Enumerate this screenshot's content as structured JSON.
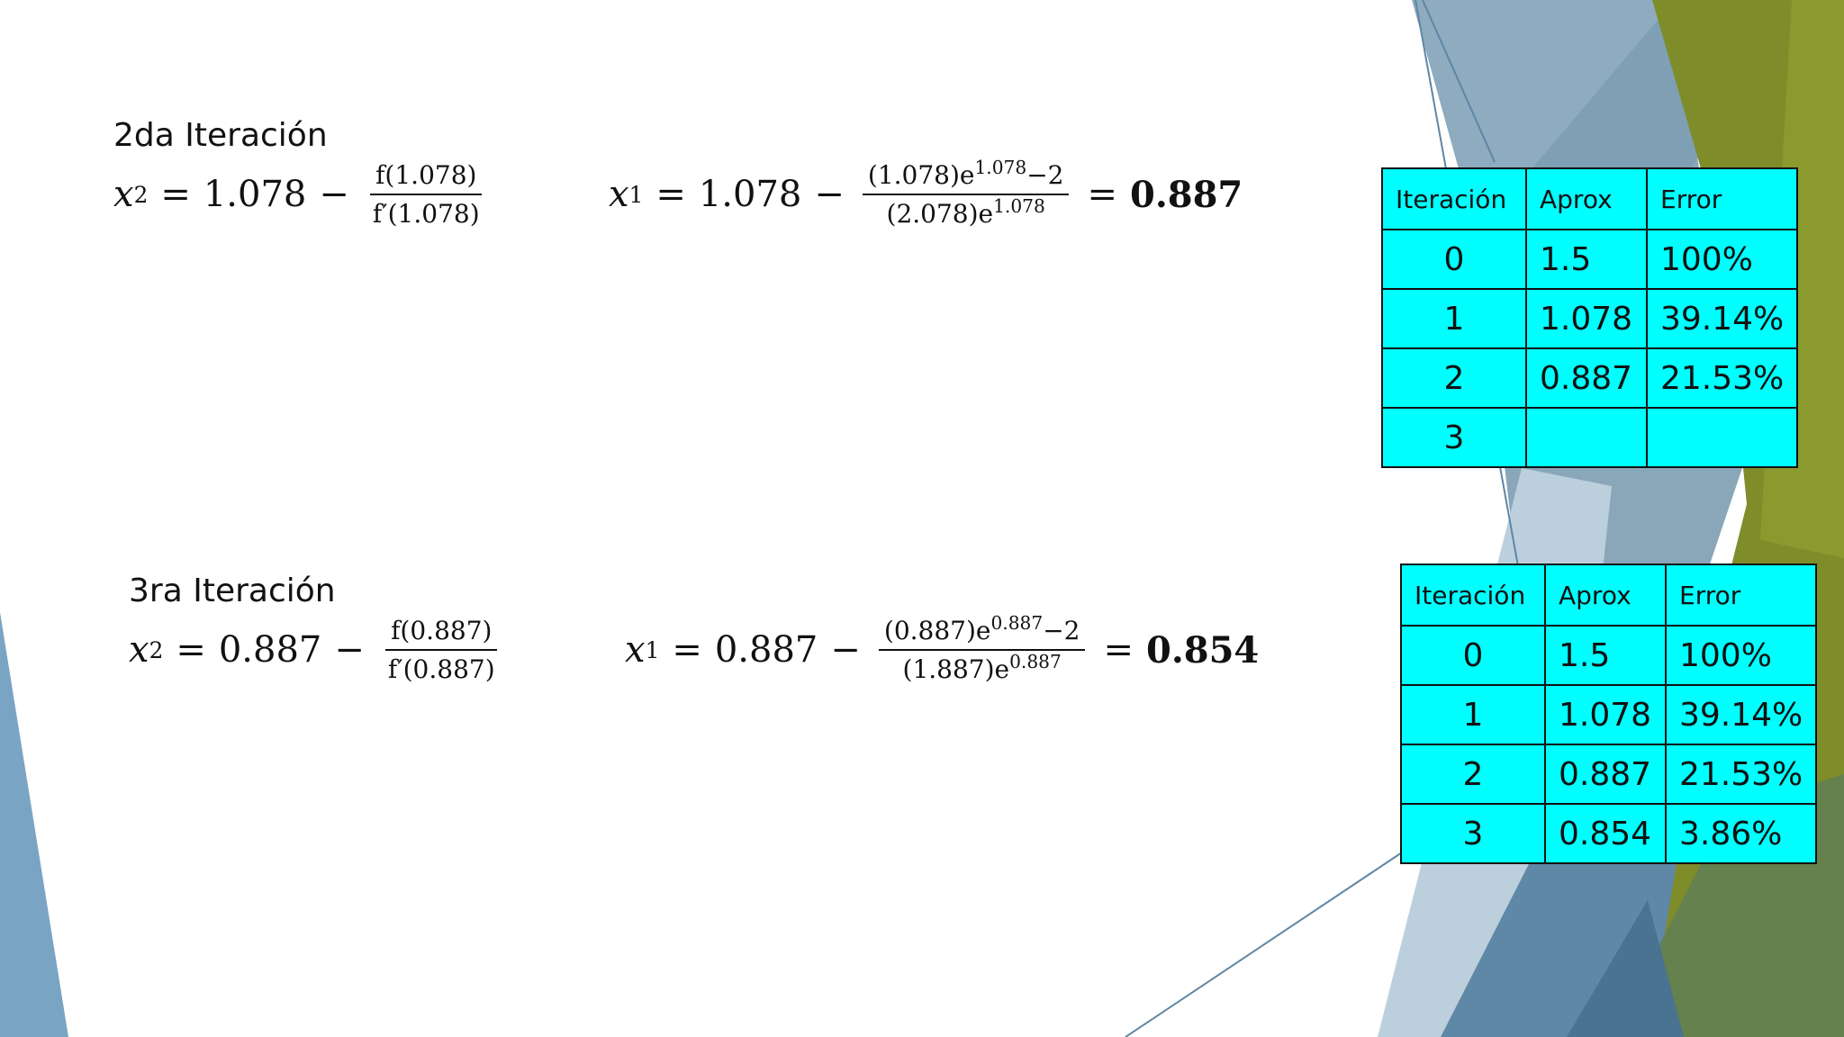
{
  "sections": [
    {
      "heading": "2da Iteración",
      "formula_left": {
        "var": "x",
        "sub": "2",
        "eq": "=",
        "base": "1.078",
        "minus": "−",
        "num": "f(1.078)",
        "den": "f′(1.078)"
      },
      "formula_right": {
        "var": "x",
        "sub": "1",
        "eq": "=",
        "base": "1.078",
        "minus": "−",
        "num_pre": "(1.078)e",
        "num_exp": "1.078",
        "num_post": "−2",
        "den_pre": "(2.078)e",
        "den_exp": "1.078",
        "eq2": "=",
        "result": "0.887"
      },
      "table": {
        "headers": [
          "Iteración",
          "Aprox",
          "Error"
        ],
        "rows": [
          [
            "0",
            "1.5",
            "100%"
          ],
          [
            "1",
            "1.078",
            "39.14%"
          ],
          [
            "2",
            "0.887",
            "21.53%"
          ],
          [
            "3",
            "",
            ""
          ]
        ]
      }
    },
    {
      "heading": "3ra Iteración",
      "formula_left": {
        "var": "x",
        "sub": "2",
        "eq": "=",
        "base": "0.887",
        "minus": "−",
        "num": "f(0.887)",
        "den": "f′(0.887)"
      },
      "formula_right": {
        "var": "x",
        "sub": "1",
        "eq": "=",
        "base": "0.887",
        "minus": "−",
        "num_pre": "(0.887)e",
        "num_exp": "0.887",
        "num_post": "−2",
        "den_pre": "(1.887)e",
        "den_exp": "0.887",
        "eq2": "=",
        "result": "0.854"
      },
      "table": {
        "headers": [
          "Iteración",
          "Aprox",
          "Error"
        ],
        "rows": [
          [
            "0",
            "1.5",
            "100%"
          ],
          [
            "1",
            "1.078",
            "39.14%"
          ],
          [
            "2",
            "0.887",
            "21.53%"
          ],
          [
            "3",
            "0.854",
            "3.86%"
          ]
        ]
      }
    }
  ],
  "theme": {
    "table_bg": "#00ffff",
    "decor_blue": "#8aa9bd",
    "decor_olive": "#7f8c2a"
  }
}
